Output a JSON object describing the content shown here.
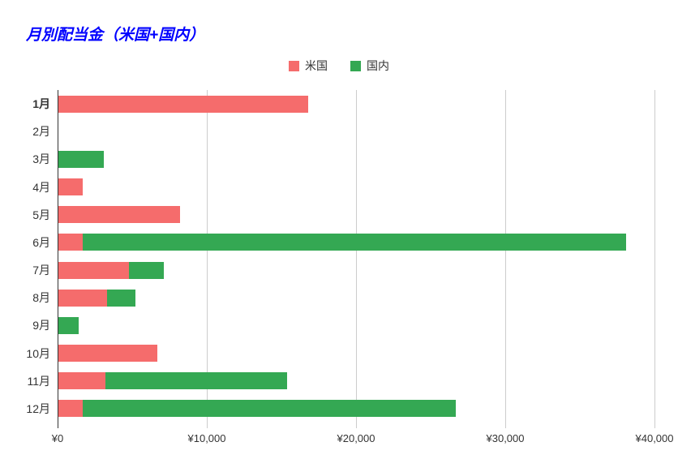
{
  "chart_data": {
    "type": "bar",
    "orientation": "horizontal",
    "stacked": true,
    "title": "月別配当金（米国+国内）",
    "title_color": "#0000FF",
    "categories": [
      "1月",
      "2月",
      "3月",
      "4月",
      "5月",
      "6月",
      "7月",
      "8月",
      "9月",
      "10月",
      "11月",
      "12月"
    ],
    "bold_category_index": 0,
    "series": [
      {
        "key": "us",
        "name": "米国",
        "color": "#F56C6C",
        "values": [
          16800,
          0,
          0,
          1700,
          8200,
          1700,
          4800,
          3300,
          0,
          6700,
          3200,
          1700
        ]
      },
      {
        "key": "domestic",
        "name": "国内",
        "color": "#34A853",
        "values": [
          0,
          0,
          3100,
          0,
          0,
          36400,
          2300,
          1900,
          1400,
          0,
          12200,
          25000
        ]
      }
    ],
    "xlim": [
      0,
      40000
    ],
    "x_ticks": [
      {
        "label": "¥0",
        "value": 0
      },
      {
        "label": "¥10,000",
        "value": 10000
      },
      {
        "label": "¥20,000",
        "value": 20000
      },
      {
        "label": "¥30,000",
        "value": 30000
      },
      {
        "label": "¥40,000",
        "value": 40000
      }
    ],
    "legend_position": "top",
    "grid": true
  },
  "colors": {
    "axis_line": "#333333",
    "gridline": "#CCCCCC",
    "text": "#333333",
    "background": "#FFFFFF"
  }
}
